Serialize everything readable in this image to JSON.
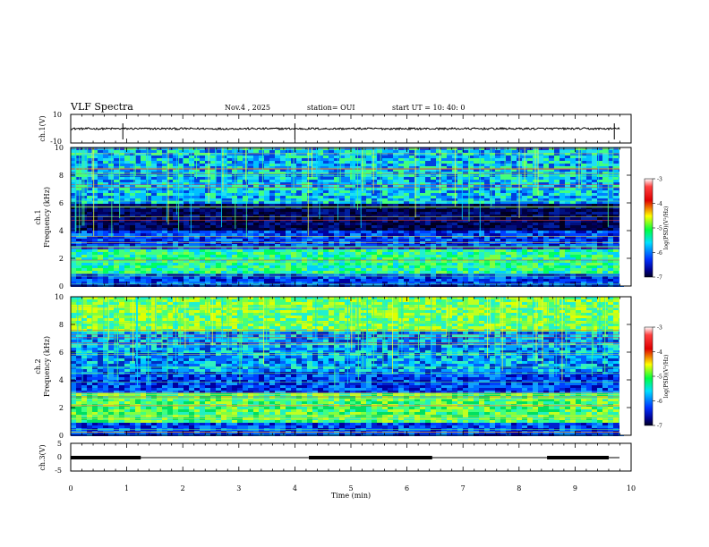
{
  "header": {
    "title": "VLF Spectra",
    "date": "Nov.4  , 2025",
    "station": "station= OUI",
    "start": "start  UT  =   10: 40: 0"
  },
  "chart_data": [
    {
      "type": "line",
      "name": "ch1-waveform",
      "ylabel": "ch.1(V)",
      "ylim": [
        -10,
        10
      ],
      "yticks": [
        "10",
        "-10"
      ],
      "baseline": 0.0,
      "spike_times_min": [
        0.93,
        4.0,
        9.7
      ]
    },
    {
      "type": "heatmap",
      "name": "ch1-spectrogram",
      "ylabel_line1": "ch.1",
      "ylabel_line2": "Frequency  (kHz)",
      "ylim": [
        0,
        10
      ],
      "yticks": [
        "0",
        "2",
        "4",
        "6",
        "8",
        "10"
      ],
      "bands_khz": [
        {
          "from": 0.0,
          "to": 1.0,
          "level": "blue"
        },
        {
          "from": 1.0,
          "to": 2.7,
          "level": "green-cyan"
        },
        {
          "from": 2.7,
          "to": 4.0,
          "level": "blue"
        },
        {
          "from": 4.0,
          "to": 6.0,
          "level": "dark-navy"
        },
        {
          "from": 6.0,
          "to": 10.0,
          "level": "cyan-blue"
        }
      ],
      "colorbar": {
        "label": "log(PSD)(V²/Hz)",
        "ticks": [
          "-3",
          "-4",
          "-5",
          "-6",
          "-7"
        ],
        "range": [
          -7,
          -3
        ]
      }
    },
    {
      "type": "heatmap",
      "name": "ch2-spectrogram",
      "ylabel_line1": "ch.2",
      "ylabel_line2": "Frequency  (kHz)",
      "ylim": [
        0,
        10
      ],
      "yticks": [
        "0",
        "2",
        "4",
        "6",
        "8",
        "10"
      ],
      "bands_khz": [
        {
          "from": 0.0,
          "to": 1.0,
          "level": "blue"
        },
        {
          "from": 1.0,
          "to": 3.0,
          "level": "green"
        },
        {
          "from": 3.0,
          "to": 4.5,
          "level": "blue"
        },
        {
          "from": 4.5,
          "to": 7.5,
          "level": "blue-cyan"
        },
        {
          "from": 7.5,
          "to": 10.0,
          "level": "green-yellow"
        }
      ],
      "colorbar": {
        "label": "log(PSD)(V²/Hz)",
        "ticks": [
          "-3",
          "-4",
          "-5",
          "-6",
          "-7"
        ],
        "range": [
          -7,
          -3
        ]
      }
    },
    {
      "type": "line",
      "name": "ch3-signal",
      "ylabel": "ch.3(V)",
      "ylim": [
        -5,
        5
      ],
      "yticks": [
        "5",
        "0",
        "-5"
      ],
      "baseline": 0.0,
      "thick_segments_min": [
        [
          0.0,
          1.25
        ],
        [
          4.25,
          6.45
        ],
        [
          8.5,
          9.6
        ]
      ]
    }
  ],
  "xaxis": {
    "label": "Time  (min)",
    "xlim": [
      0,
      10
    ],
    "ticks": [
      "0",
      "1",
      "2",
      "3",
      "4",
      "5",
      "6",
      "7",
      "8",
      "9",
      "10"
    ]
  },
  "colors": {
    "black": "#000000",
    "navy": "#000033",
    "blue": "#1030d0",
    "cyan": "#20c0e0",
    "green": "#40e080",
    "yellow": "#e0e040",
    "red": "#d02020"
  }
}
